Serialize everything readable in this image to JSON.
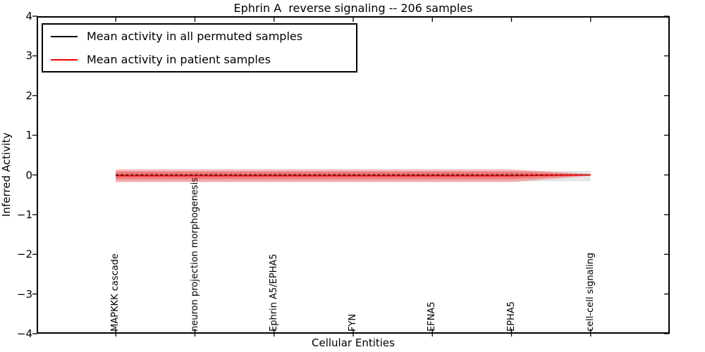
{
  "legend": {
    "items": [
      {
        "label": "Mean activity in all permuted samples",
        "color": "#000000"
      },
      {
        "label": "Mean activity in patient samples",
        "color": "#ff0000"
      }
    ]
  },
  "chart_data": {
    "type": "line",
    "title": "Ephrin A  reverse signaling -- 206 samples",
    "xlabel": "Cellular Entities",
    "ylabel": "Inferred Activity",
    "xlim": [
      0,
      8
    ],
    "ylim": [
      -4,
      4
    ],
    "grid": false,
    "legend_position": "upper left",
    "background": "#ffffff",
    "frame_color": "#000000",
    "yticks": {
      "values": [
        4,
        3,
        2,
        1,
        0,
        -1,
        -2,
        -3,
        -4
      ],
      "labels": [
        "4",
        "3",
        "2",
        "1",
        "0",
        "−1",
        "−2",
        "−3",
        "−4"
      ]
    },
    "xticks": {
      "values": [
        1,
        2,
        3,
        4,
        5,
        6,
        7
      ],
      "labels": [
        "MAPKKK cascade",
        "neuron projection morphogenesis",
        "Ephrin A5/EPHA5",
        "FYN",
        "EFNA5",
        "EPHA5",
        "cell-cell signaling"
      ]
    },
    "categories": [
      "MAPKKK cascade",
      "neuron projection morphogenesis",
      "Ephrin A5/EPHA5",
      "FYN",
      "EFNA5",
      "EPHA5",
      "cell-cell signaling"
    ],
    "x": [
      1,
      2,
      3,
      4,
      5,
      6,
      7
    ],
    "series": [
      {
        "name": "Mean activity in all permuted samples",
        "color": "#000000",
        "linestyle": "dashed",
        "values": [
          0,
          0,
          0,
          0,
          0,
          0,
          0
        ]
      },
      {
        "name": "Mean activity in patient samples",
        "color": "#e00000",
        "linestyle": "solid",
        "values": [
          -0.02,
          -0.02,
          -0.02,
          -0.02,
          -0.02,
          -0.02,
          0
        ]
      }
    ],
    "bands": [
      {
        "name": "permuted-samples-std-band",
        "color": "#000000",
        "opacity": 0.1,
        "upper": [
          0.1,
          0.1,
          0.1,
          0.1,
          0.1,
          0.1,
          0.1
        ],
        "lower": [
          -0.16,
          -0.16,
          -0.16,
          -0.16,
          -0.16,
          -0.16,
          -0.16
        ]
      },
      {
        "name": "patient-samples-outer-band",
        "color": "#ff0000",
        "opacity": 0.28,
        "upper": [
          0.14,
          0.14,
          0.14,
          0.14,
          0.14,
          0.14,
          0.02
        ],
        "lower": [
          -0.18,
          -0.18,
          -0.18,
          -0.18,
          -0.18,
          -0.18,
          -0.02
        ]
      },
      {
        "name": "patient-samples-inner-band",
        "color": "#ff0000",
        "opacity": 0.28,
        "upper": [
          0.08,
          0.08,
          0.08,
          0.08,
          0.08,
          0.08,
          0.01
        ],
        "lower": [
          -0.1,
          -0.1,
          -0.1,
          -0.1,
          -0.1,
          -0.1,
          -0.01
        ]
      }
    ]
  }
}
